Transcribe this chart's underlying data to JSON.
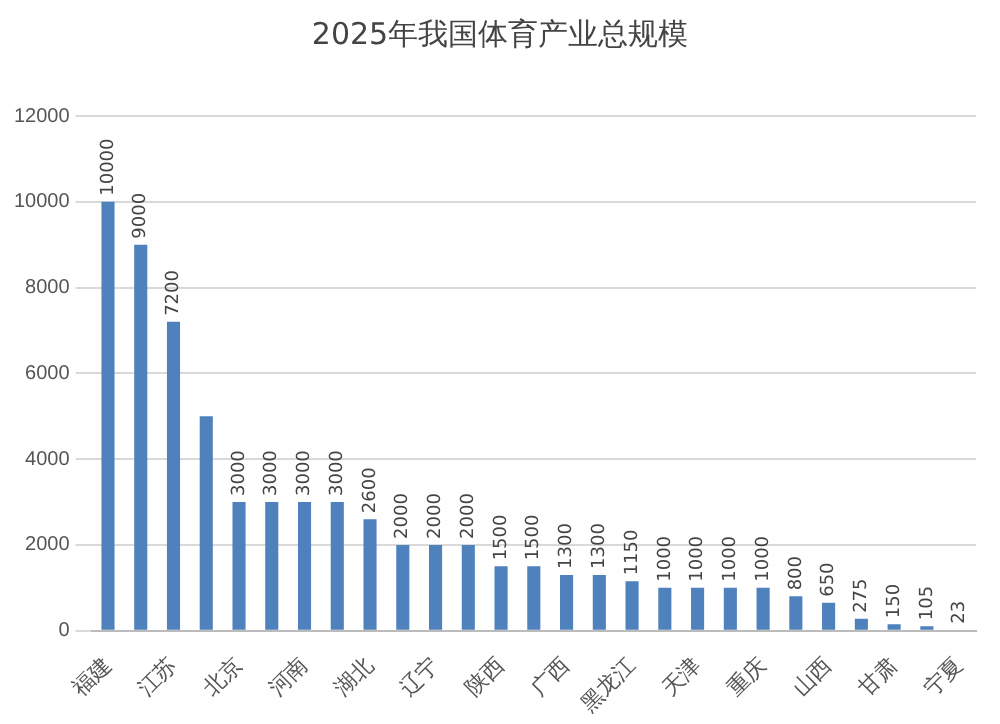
{
  "chart_data": {
    "type": "bar",
    "title": "2025年我国体育产业总规模",
    "categories": [
      "福建",
      null,
      "江苏",
      null,
      "北京",
      null,
      "河南",
      null,
      "湖北",
      null,
      "辽宁",
      null,
      "陕西",
      null,
      "广西",
      null,
      "黑龙江",
      null,
      "天津",
      null,
      "重庆",
      null,
      "山西",
      null,
      "甘肃",
      null,
      "宁夏"
    ],
    "values": [
      10000,
      9000,
      7200,
      5000,
      3000,
      3000,
      3000,
      3000,
      2600,
      2000,
      2000,
      2000,
      1500,
      1500,
      1300,
      1300,
      1150,
      1000,
      1000,
      1000,
      1000,
      800,
      650,
      275,
      150,
      105,
      23
    ],
    "value_labels": [
      "10000",
      "9000",
      "7200",
      null,
      "3000",
      "3000",
      "3000",
      "3000",
      "2600",
      "2000",
      "2000",
      "2000",
      "1500",
      "1500",
      "1300",
      "1300",
      "1150",
      "1000",
      "1000",
      "1000",
      "1000",
      "800",
      "650",
      "275",
      "150",
      "105",
      "23"
    ],
    "color": "#4f81bd",
    "ylim": [
      0,
      12000
    ],
    "yticks": [
      0,
      2000,
      4000,
      6000,
      8000,
      10000,
      12000
    ],
    "grid": "y",
    "legend": false
  }
}
